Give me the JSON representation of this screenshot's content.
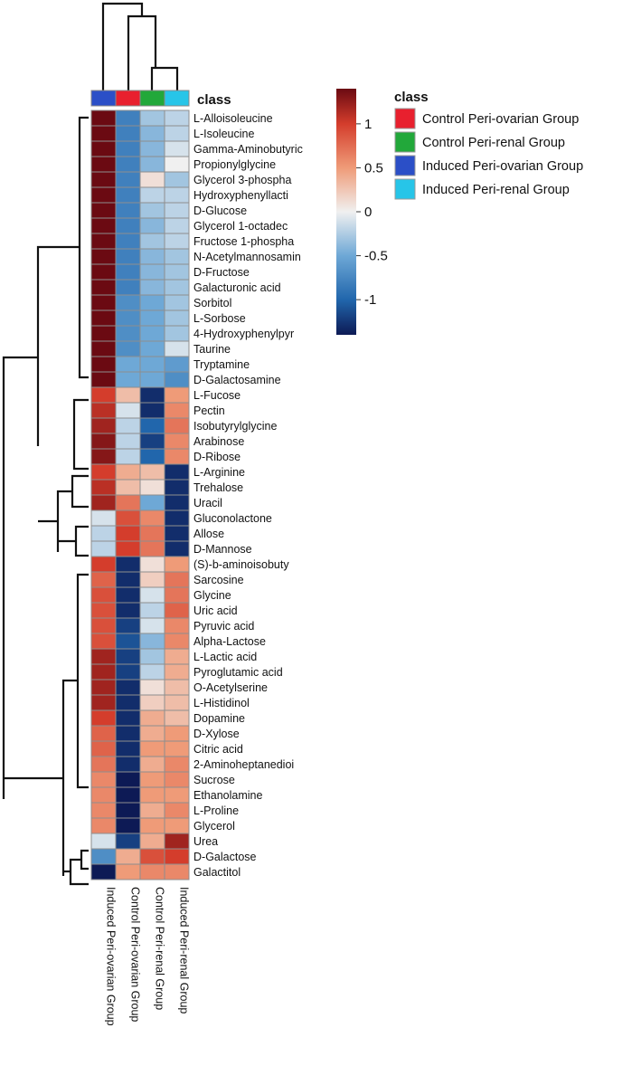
{
  "chart_data": {
    "type": "heatmap",
    "title": "class",
    "color_scale": {
      "stops": [
        {
          "value": -1.4,
          "color": "#0d1a55"
        },
        {
          "value": -1.0,
          "color": "#2166ac"
        },
        {
          "value": -0.5,
          "color": "#6ea8d6"
        },
        {
          "value": 0,
          "color": "#f0f0f0"
        },
        {
          "value": 0.5,
          "color": "#ef9b78"
        },
        {
          "value": 1.0,
          "color": "#d43d2c"
        },
        {
          "value": 1.4,
          "color": "#6b0a12"
        }
      ],
      "ticks": [
        1,
        0.5,
        0,
        -0.5,
        -1
      ],
      "tick_labels": [
        "1",
        "0.5",
        "0",
        "-0.5",
        "-1"
      ]
    },
    "columns": [
      "Induced Peri-ovarian Group",
      "Control Peri-ovarian Group",
      "Control Peri-renal Group",
      "Induced Peri-renal Group"
    ],
    "column_class_colors": [
      "#2b4fc7",
      "#e8202e",
      "#22a83a",
      "#27c5e8"
    ],
    "legend": {
      "title": "class",
      "items": [
        {
          "label": "Control Peri-ovarian Group",
          "color": "#e8202e"
        },
        {
          "label": "Control Peri-renal Group",
          "color": "#22a83a"
        },
        {
          "label": "Induced Peri-ovarian Group",
          "color": "#2b4fc7"
        },
        {
          "label": "Induced Peri-renal Group",
          "color": "#27c5e8"
        }
      ]
    },
    "rows": [
      "L-Alloisoleucine",
      "L-Isoleucine",
      "Gamma-Aminobutyric",
      "Propionylglycine",
      "Glycerol 3-phospha",
      "Hydroxyphenyllacti",
      "D-Glucose",
      "Glycerol 1-octadec",
      "Fructose 1-phospha",
      "N-Acetylmannosamin",
      "D-Fructose",
      "Galacturonic acid",
      "Sorbitol",
      "L-Sorbose",
      "4-Hydroxyphenylpyr",
      "Taurine",
      "Tryptamine",
      "D-Galactosamine",
      "L-Fucose",
      "Pectin",
      "Isobutyrylglycine",
      "Arabinose",
      "D-Ribose",
      "L-Arginine",
      "Trehalose",
      "Uracil",
      "Gluconolactone",
      "Allose",
      "D-Mannose",
      "(S)-b-aminoisobuty",
      "Sarcosine",
      "Glycine",
      "Uric acid",
      "Pyruvic acid",
      "Alpha-Lactose",
      "L-Lactic acid",
      "Pyroglutamic acid",
      "O-Acetylserine",
      "L-Histidinol",
      "Dopamine",
      "D-Xylose",
      "Citric acid",
      "2-Aminoheptanedioi",
      "Sucrose",
      "Ethanolamine",
      "L-Proline",
      "Glycerol",
      "Urea",
      "D-Galactose",
      "Galactitol"
    ],
    "values": [
      [
        1.4,
        -0.8,
        -0.3,
        -0.2
      ],
      [
        1.4,
        -0.8,
        -0.4,
        -0.2
      ],
      [
        1.4,
        -0.8,
        -0.4,
        -0.1
      ],
      [
        1.4,
        -0.8,
        -0.4,
        0.0
      ],
      [
        1.4,
        -0.8,
        0.1,
        -0.3
      ],
      [
        1.4,
        -0.8,
        -0.2,
        -0.2
      ],
      [
        1.4,
        -0.8,
        -0.3,
        -0.2
      ],
      [
        1.4,
        -0.8,
        -0.4,
        -0.2
      ],
      [
        1.4,
        -0.8,
        -0.3,
        -0.2
      ],
      [
        1.4,
        -0.8,
        -0.4,
        -0.3
      ],
      [
        1.4,
        -0.8,
        -0.4,
        -0.3
      ],
      [
        1.4,
        -0.8,
        -0.4,
        -0.3
      ],
      [
        1.4,
        -0.7,
        -0.5,
        -0.3
      ],
      [
        1.4,
        -0.7,
        -0.5,
        -0.3
      ],
      [
        1.4,
        -0.7,
        -0.5,
        -0.3
      ],
      [
        1.4,
        -0.7,
        -0.5,
        -0.1
      ],
      [
        1.4,
        -0.5,
        -0.5,
        -0.6
      ],
      [
        1.4,
        -0.5,
        -0.5,
        -0.7
      ],
      [
        1.0,
        0.3,
        -1.3,
        0.5
      ],
      [
        1.1,
        -0.1,
        -1.3,
        0.6
      ],
      [
        1.2,
        -0.2,
        -1.0,
        0.7
      ],
      [
        1.3,
        -0.2,
        -1.2,
        0.6
      ],
      [
        1.3,
        -0.2,
        -1.0,
        0.6
      ],
      [
        1.0,
        0.4,
        0.3,
        -1.3
      ],
      [
        1.1,
        0.3,
        0.1,
        -1.3
      ],
      [
        1.2,
        0.7,
        -0.5,
        -1.3
      ],
      [
        -0.1,
        0.9,
        0.6,
        -1.3
      ],
      [
        -0.2,
        1.0,
        0.7,
        -1.3
      ],
      [
        -0.2,
        1.0,
        0.7,
        -1.3
      ],
      [
        1.0,
        -1.3,
        0.1,
        0.5
      ],
      [
        0.8,
        -1.3,
        0.2,
        0.7
      ],
      [
        0.9,
        -1.3,
        -0.1,
        0.7
      ],
      [
        0.9,
        -1.3,
        -0.2,
        0.8
      ],
      [
        0.9,
        -1.2,
        -0.1,
        0.6
      ],
      [
        0.9,
        -1.1,
        -0.4,
        0.6
      ],
      [
        1.2,
        -1.2,
        -0.3,
        0.4
      ],
      [
        1.2,
        -1.2,
        -0.2,
        0.4
      ],
      [
        1.2,
        -1.3,
        0.1,
        0.3
      ],
      [
        1.2,
        -1.3,
        0.2,
        0.3
      ],
      [
        1.0,
        -1.3,
        0.4,
        0.3
      ],
      [
        0.8,
        -1.3,
        0.4,
        0.5
      ],
      [
        0.8,
        -1.3,
        0.5,
        0.5
      ],
      [
        0.7,
        -1.3,
        0.4,
        0.6
      ],
      [
        0.6,
        -1.4,
        0.5,
        0.6
      ],
      [
        0.6,
        -1.4,
        0.5,
        0.5
      ],
      [
        0.6,
        -1.4,
        0.4,
        0.6
      ],
      [
        0.6,
        -1.4,
        0.5,
        0.5
      ],
      [
        -0.1,
        -1.2,
        0.4,
        1.2
      ],
      [
        -0.7,
        0.4,
        0.9,
        1.0
      ],
      [
        -1.4,
        0.5,
        0.6,
        0.6
      ]
    ]
  }
}
